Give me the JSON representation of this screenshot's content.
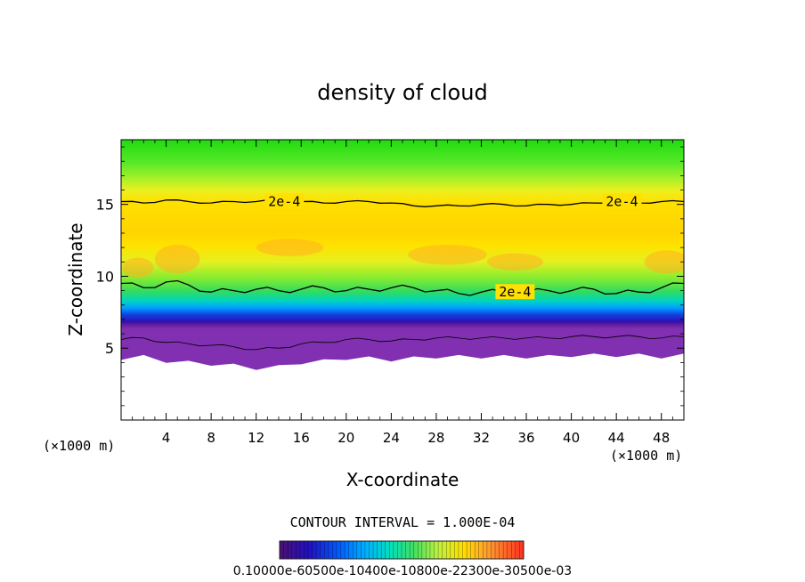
{
  "chart_data": {
    "type": "heatmap",
    "title": "density of cloud",
    "xlabel": "X-coordinate",
    "ylabel": "Z-coordinate",
    "x_unit_left": "(×1000 m)",
    "x_unit_right": "(×1000 m)",
    "xlim": [
      0,
      50
    ],
    "ylim": [
      0,
      19.5
    ],
    "x_ticks": [
      4,
      8,
      12,
      16,
      20,
      24,
      28,
      32,
      36,
      40,
      44,
      48
    ],
    "y_ticks": [
      5,
      10,
      15
    ],
    "contour_interval_text": "CONTOUR INTERVAL = 1.000E-04",
    "contour_labels": [
      {
        "text": "2e-4",
        "x": 14.5,
        "z": 15.2
      },
      {
        "text": "2e-4",
        "x": 44.5,
        "z": 15.2
      },
      {
        "text": "2e-4",
        "x": 35.0,
        "z": 8.9
      }
    ],
    "colorbar": {
      "tick_labels_text": "0.10000e-60500e-10400e-10800e-22300e-30500e-03",
      "colors": [
        "#3a0070",
        "#2010c0",
        "#0060ff",
        "#00b0ff",
        "#00e0c0",
        "#20e060",
        "#80f040",
        "#d8f020",
        "#ffe000",
        "#ffb020",
        "#ff7030",
        "#ff3020"
      ]
    },
    "cloud_base_z_profile": {
      "x": [
        0,
        2,
        4,
        6,
        8,
        10,
        12,
        14,
        16,
        18,
        20,
        22,
        24,
        26,
        28,
        30,
        32,
        34,
        36,
        38,
        40,
        42,
        44,
        46,
        48,
        50
      ],
      "z": [
        4.3,
        4.4,
        4.1,
        4.0,
        3.9,
        3.8,
        3.6,
        3.7,
        4.0,
        4.1,
        4.3,
        4.3,
        4.2,
        4.3,
        4.4,
        4.4,
        4.4,
        4.4,
        4.4,
        4.4,
        4.5,
        4.5,
        4.5,
        4.5,
        4.4,
        4.5
      ]
    },
    "lower_contour_2e4_z": {
      "x": [
        0,
        2,
        4,
        6,
        8,
        10,
        12,
        14,
        16,
        18,
        20,
        22,
        24,
        26,
        28,
        30,
        32,
        34,
        36,
        38,
        40,
        42,
        44,
        46,
        48,
        50
      ],
      "z": [
        9.5,
        9.2,
        9.6,
        9.4,
        8.9,
        9.0,
        9.1,
        9.0,
        9.1,
        9.2,
        9.0,
        9.1,
        9.2,
        9.2,
        9.0,
        8.8,
        8.9,
        8.9,
        8.9,
        9.0,
        9.0,
        9.1,
        8.8,
        8.9,
        9.2,
        9.5
      ]
    },
    "upper_contour_2e4_z": {
      "x": [
        0,
        2,
        4,
        6,
        8,
        10,
        12,
        14,
        16,
        18,
        20,
        22,
        24,
        26,
        28,
        30,
        32,
        34,
        36,
        38,
        40,
        42,
        44,
        46,
        48,
        50
      ],
      "z": [
        15.2,
        15.1,
        15.3,
        15.2,
        15.1,
        15.2,
        15.2,
        15.3,
        15.2,
        15.1,
        15.2,
        15.2,
        15.1,
        14.9,
        14.9,
        14.9,
        15.0,
        15.0,
        14.9,
        15.0,
        15.0,
        15.1,
        15.2,
        15.1,
        15.2,
        15.2
      ]
    },
    "grid": false,
    "legend": "colorbar bottom"
  }
}
